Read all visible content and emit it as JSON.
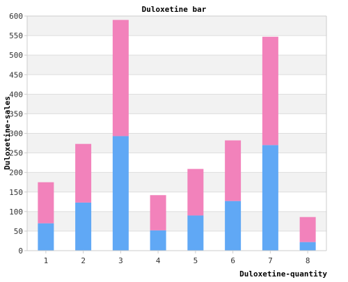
{
  "chart_data": {
    "type": "bar",
    "stacked": true,
    "title": "Duloxetine bar",
    "xlabel": "Duloxetine-quantity",
    "ylabel": "Duloxetine-sales",
    "categories": [
      "1",
      "2",
      "3",
      "4",
      "5",
      "6",
      "7",
      "8"
    ],
    "ylim": [
      0,
      600
    ],
    "yticks": [
      0,
      50,
      100,
      150,
      200,
      250,
      300,
      350,
      400,
      450,
      500,
      550,
      600
    ],
    "grid": true,
    "legend": "none",
    "series": [
      {
        "values": [
          70,
          123,
          293,
          52,
          90,
          127,
          270,
          22
        ],
        "color": "#60a8f5"
      },
      {
        "values": [
          105,
          150,
          297,
          90,
          119,
          155,
          277,
          64
        ],
        "color": "#f282bb"
      }
    ],
    "colors": {
      "band_alt": "#f2f2f2",
      "gridline": "#dddddd",
      "axis": "#cccccc"
    }
  }
}
